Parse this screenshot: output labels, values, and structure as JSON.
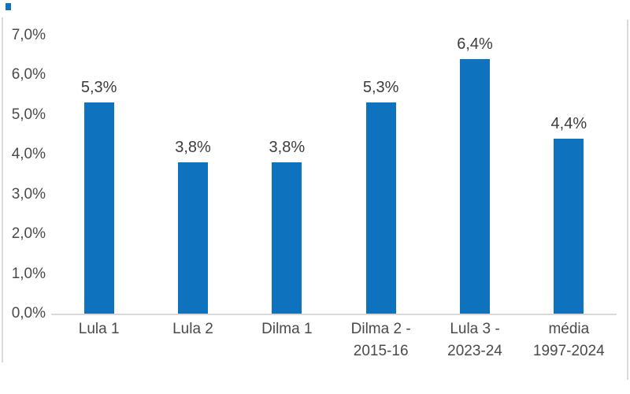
{
  "chart_data": {
    "type": "bar",
    "title": "",
    "xlabel": "",
    "ylabel": "",
    "categories": [
      "Lula 1",
      "Lula 2",
      "Dilma 1",
      "Dilma 2 - 2015-16",
      "Lula 3 - 2023-24",
      "média 1997-2024"
    ],
    "category_lines": [
      [
        "Lula 1"
      ],
      [
        "Lula 2"
      ],
      [
        "Dilma 1"
      ],
      [
        "Dilma 2 -",
        "2015-16"
      ],
      [
        "Lula 3 -",
        "2023-24"
      ],
      [
        "média",
        "1997-2024"
      ]
    ],
    "values": [
      5.3,
      3.8,
      3.8,
      5.3,
      6.4,
      4.4
    ],
    "value_labels": [
      "5,3%",
      "3,8%",
      "3,8%",
      "5,3%",
      "6,4%",
      "4,4%"
    ],
    "y_ticks": [
      {
        "value": 7,
        "label": "7,0%"
      },
      {
        "value": 6,
        "label": "6,0%"
      },
      {
        "value": 5,
        "label": "5,0%"
      },
      {
        "value": 4,
        "label": "4,0%"
      },
      {
        "value": 3,
        "label": "3,0%"
      },
      {
        "value": 2,
        "label": "2,0%"
      },
      {
        "value": 1,
        "label": "1,0%"
      },
      {
        "value": 0,
        "label": "0,0%"
      }
    ],
    "ylim": [
      0,
      7
    ],
    "grid": false,
    "legend": false,
    "decimal_separator": ",",
    "colors": {
      "bar": "#0e72be",
      "axis_line": "#d9d9d9",
      "tick_text": "#4a4a4a",
      "value_text": "#3c3c3c"
    }
  }
}
